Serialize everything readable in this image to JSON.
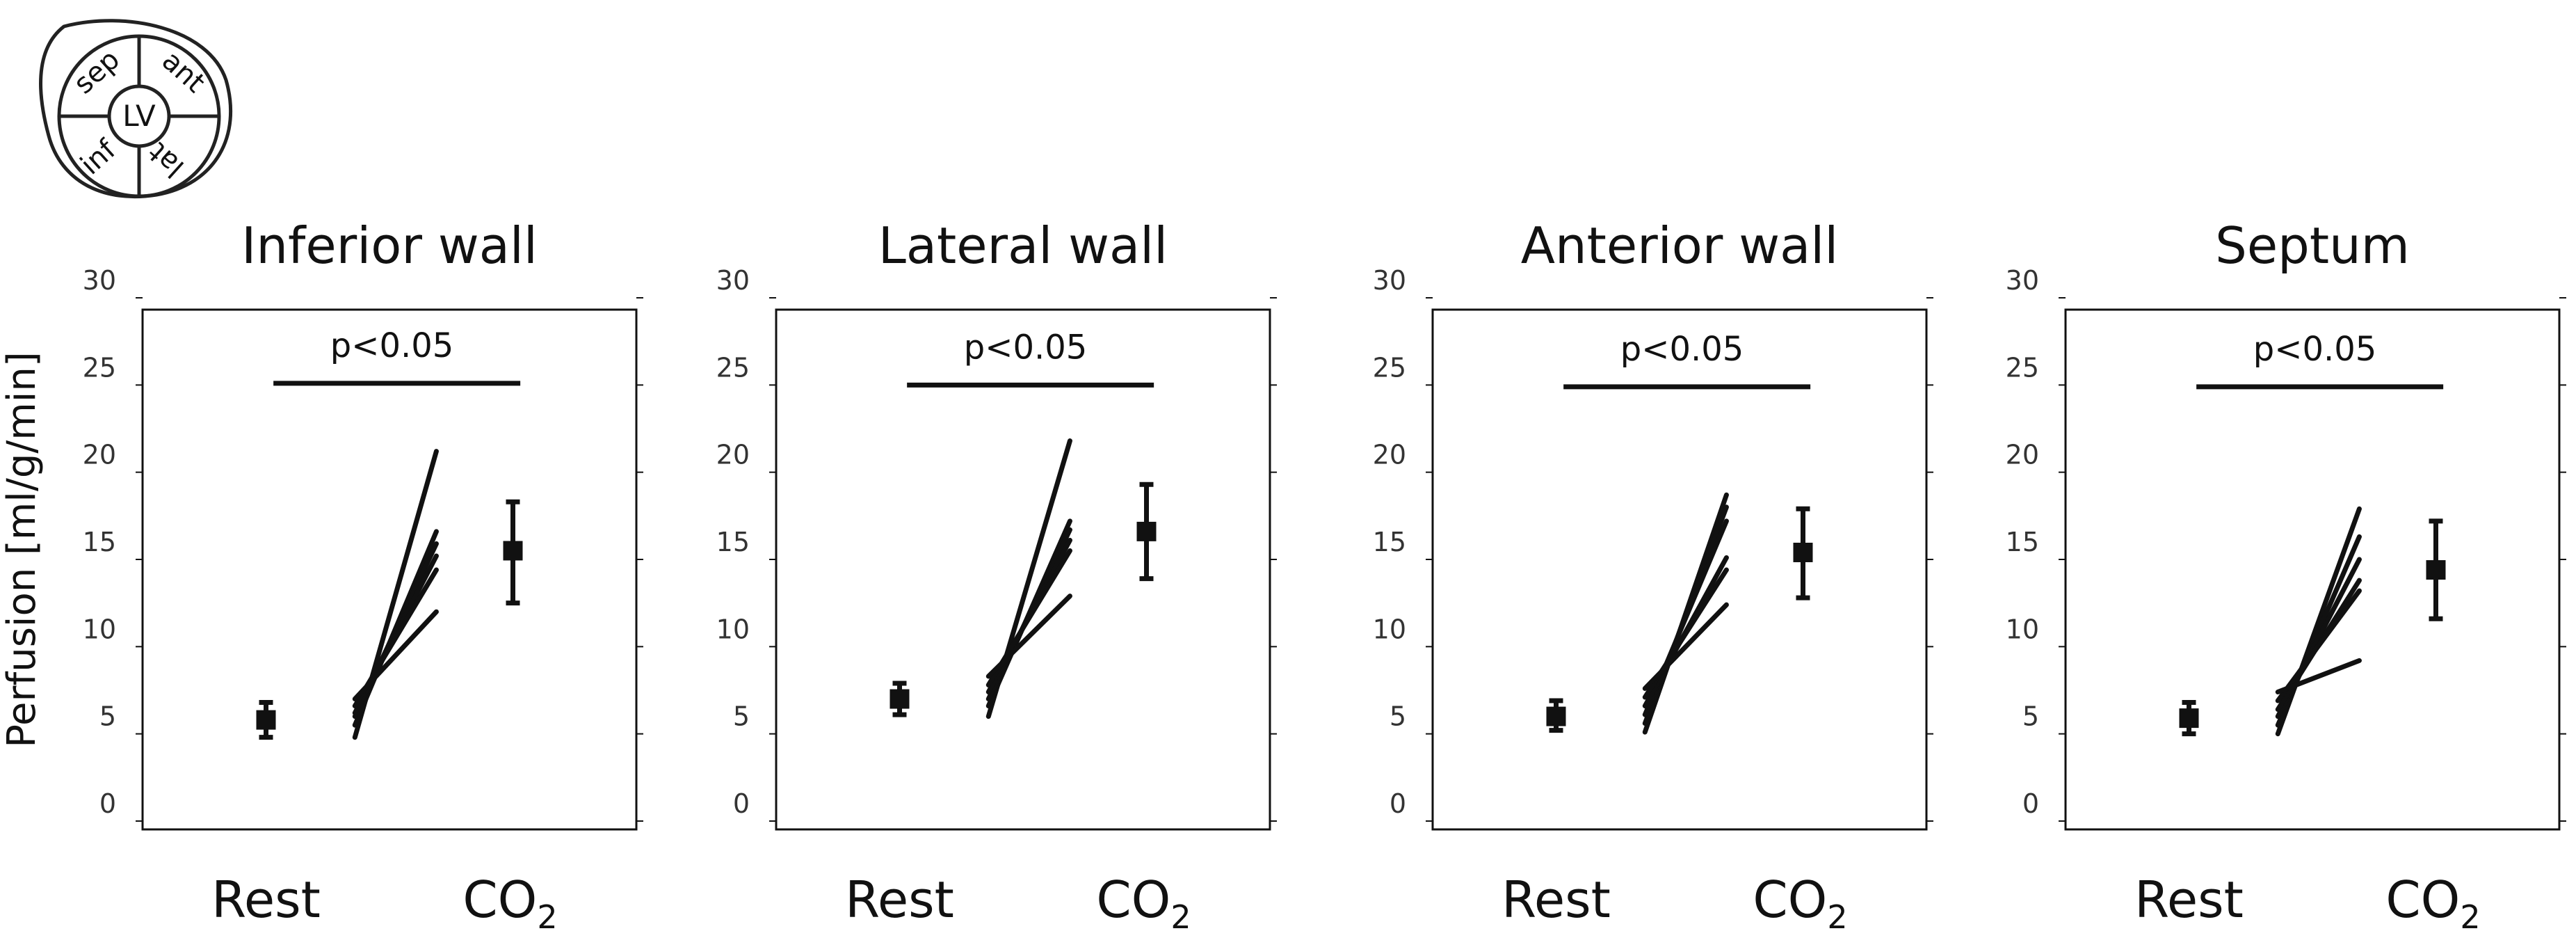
{
  "ylabel": "Perfusion [ml/g/min]",
  "diagram": {
    "center": "LV",
    "segments": [
      "sep",
      "ant",
      "lat",
      "inf"
    ]
  },
  "chart_data": [
    {
      "type": "scatter",
      "title": "Inferior wall",
      "categories": [
        "Rest",
        "CO2"
      ],
      "category_labels": [
        {
          "main": "Rest",
          "sub": ""
        },
        {
          "main": "CO",
          "sub": "2"
        }
      ],
      "ylim": [
        0,
        30
      ],
      "yticks": [
        0,
        5,
        10,
        15,
        20,
        25,
        30
      ],
      "ylabel": "Perfusion [ml/g/min]",
      "mean_sd": [
        {
          "mean": 5.8,
          "low": 4.8,
          "high": 6.8
        },
        {
          "mean": 15.5,
          "low": 12.5,
          "high": 18.3
        }
      ],
      "paired_lines": [
        [
          4.8,
          21.2
        ],
        [
          5.5,
          16.6
        ],
        [
          6.0,
          15.9
        ],
        [
          6.2,
          15.2
        ],
        [
          6.6,
          14.4
        ],
        [
          7.0,
          12.0
        ]
      ],
      "annotation": {
        "text": "p<0.05",
        "y": 25.1
      }
    },
    {
      "type": "scatter",
      "title": "Lateral wall",
      "categories": [
        "Rest",
        "CO2"
      ],
      "category_labels": [
        {
          "main": "Rest",
          "sub": ""
        },
        {
          "main": "CO",
          "sub": "2"
        }
      ],
      "ylim": [
        0,
        30
      ],
      "yticks": [
        0,
        5,
        10,
        15,
        20,
        25,
        30
      ],
      "mean_sd": [
        {
          "mean": 7.0,
          "low": 6.1,
          "high": 7.9
        },
        {
          "mean": 16.6,
          "low": 13.9,
          "high": 19.3
        }
      ],
      "paired_lines": [
        [
          6.0,
          21.8
        ],
        [
          6.6,
          17.2
        ],
        [
          7.0,
          16.7
        ],
        [
          7.4,
          16.1
        ],
        [
          7.8,
          15.5
        ],
        [
          8.3,
          12.9
        ]
      ],
      "annotation": {
        "text": "p<0.05",
        "y": 25.0
      }
    },
    {
      "type": "scatter",
      "title": "Anterior wall",
      "categories": [
        "Rest",
        "CO2"
      ],
      "category_labels": [
        {
          "main": "Rest",
          "sub": ""
        },
        {
          "main": "CO",
          "sub": "2"
        }
      ],
      "ylim": [
        0,
        30
      ],
      "yticks": [
        0,
        5,
        10,
        15,
        20,
        25,
        30
      ],
      "mean_sd": [
        {
          "mean": 6.0,
          "low": 5.2,
          "high": 6.9
        },
        {
          "mean": 15.4,
          "low": 12.8,
          "high": 17.9
        }
      ],
      "paired_lines": [
        [
          5.1,
          18.7
        ],
        [
          5.6,
          18.0
        ],
        [
          6.1,
          17.2
        ],
        [
          6.6,
          15.1
        ],
        [
          7.1,
          14.4
        ],
        [
          7.6,
          12.4
        ]
      ],
      "annotation": {
        "text": "p<0.05",
        "y": 24.9
      }
    },
    {
      "type": "scatter",
      "title": "Septum",
      "categories": [
        "Rest",
        "CO2"
      ],
      "category_labels": [
        {
          "main": "Rest",
          "sub": ""
        },
        {
          "main": "CO",
          "sub": "2"
        }
      ],
      "ylim": [
        0,
        30
      ],
      "yticks": [
        0,
        5,
        10,
        15,
        20,
        25,
        30
      ],
      "mean_sd": [
        {
          "mean": 5.9,
          "low": 5.0,
          "high": 6.8
        },
        {
          "mean": 14.4,
          "low": 11.6,
          "high": 17.2
        }
      ],
      "paired_lines": [
        [
          5.0,
          17.9
        ],
        [
          5.5,
          16.3
        ],
        [
          6.0,
          15.0
        ],
        [
          6.4,
          13.8
        ],
        [
          6.9,
          13.2
        ],
        [
          7.4,
          9.2
        ]
      ],
      "annotation": {
        "text": "p<0.05",
        "y": 24.9
      }
    }
  ]
}
